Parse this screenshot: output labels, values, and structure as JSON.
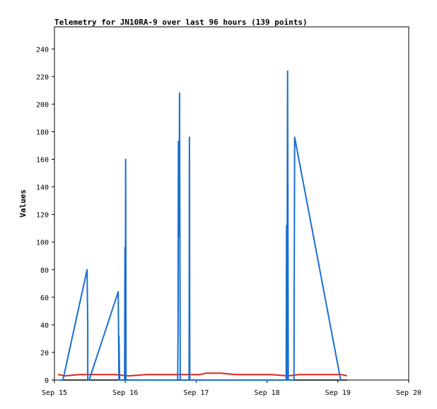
{
  "chart_data": {
    "type": "line",
    "title": "Telemetry for JN10RA-9 over last 96 hours (139 points)",
    "xlabel": "",
    "ylabel": "Values",
    "x_tick_labels": [
      "Sep 15",
      "Sep 16",
      "Sep 17",
      "Sep 18",
      "Sep 19",
      "Sep 20"
    ],
    "xlim_days": [
      15,
      20
    ],
    "ylim": [
      0,
      256
    ],
    "y_ticks": [
      0,
      20,
      40,
      60,
      80,
      100,
      120,
      140,
      160,
      180,
      200,
      220,
      240
    ],
    "grid": false,
    "legend": "none",
    "series": [
      {
        "color": "#1a6fd0",
        "x_days": [
          15.08,
          15.12,
          15.46,
          15.47,
          15.47,
          15.49,
          15.9,
          15.91,
          15.91,
          15.92,
          15.99,
          15.995,
          16.0,
          16.005,
          16.01,
          16.03,
          16.74,
          16.745,
          16.75,
          16.76,
          16.765,
          16.77,
          16.775,
          16.8,
          16.9,
          16.905,
          16.91,
          16.92,
          18.27,
          18.275,
          18.28,
          18.29,
          18.3,
          18.305,
          18.31,
          18.38,
          18.39,
          19.04,
          19.05
        ],
        "values": [
          0,
          0,
          80,
          40,
          0,
          0,
          64,
          0,
          32,
          0,
          0,
          96,
          0,
          160,
          0,
          0,
          0,
          35,
          173,
          104,
          208,
          104,
          0,
          0,
          0,
          176,
          0,
          0,
          0,
          112,
          0,
          224,
          0,
          0,
          0,
          0,
          176,
          0,
          0
        ]
      },
      {
        "color": "#e0241b",
        "x_days": [
          15.05,
          15.15,
          15.35,
          15.6,
          15.85,
          16.05,
          16.3,
          16.6,
          16.9,
          17.05,
          17.15,
          17.35,
          17.55,
          17.8,
          18.05,
          18.3,
          18.45,
          18.7,
          18.95,
          19.05,
          19.13
        ],
        "values": [
          4,
          3,
          4,
          4,
          4,
          3,
          4,
          4,
          4,
          4,
          5,
          5,
          4,
          4,
          4,
          3,
          4,
          4,
          4,
          4,
          3
        ]
      },
      {
        "color": "#000000",
        "x_days": [
          15.08,
          19.13
        ],
        "values": [
          0,
          0
        ]
      }
    ]
  }
}
